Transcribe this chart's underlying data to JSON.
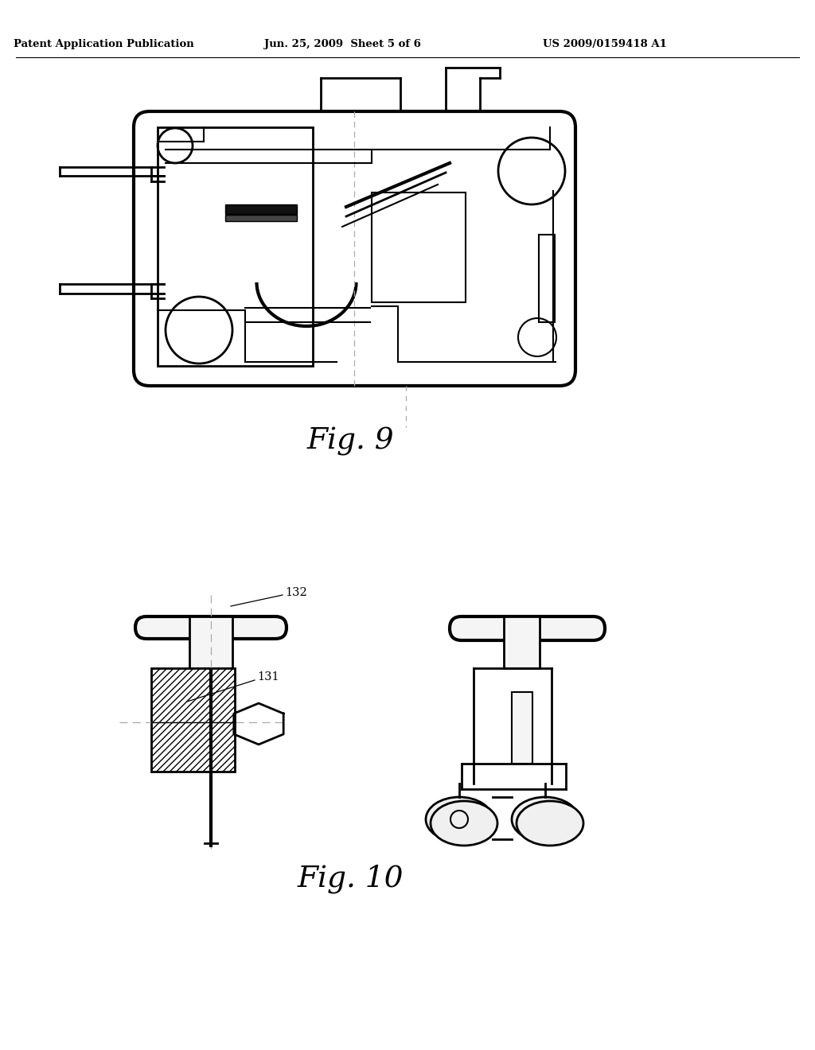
{
  "background_color": "#ffffff",
  "header_left": "Patent Application Publication",
  "header_center": "Jun. 25, 2009  Sheet 5 of 6",
  "header_right": "US 2009/0159418 A1",
  "fig9_label": "Fig. 9",
  "fig10_label": "Fig. 10",
  "label_132": "132",
  "label_131": "131",
  "line_color": "#000000",
  "dash_color": "#aaaaaa"
}
